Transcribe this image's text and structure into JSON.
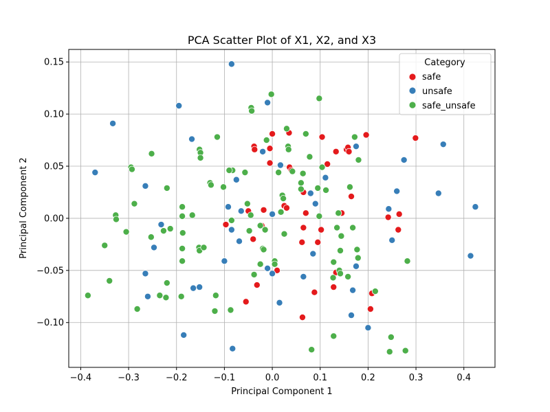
{
  "chart_data": {
    "type": "scatter",
    "title": "PCA Scatter Plot of X1, X2, and X3",
    "xlabel": "Principal Component 1",
    "ylabel": "Principal Component 2",
    "xlim": [
      -0.425,
      0.465
    ],
    "ylim": [
      -0.143,
      0.162
    ],
    "xticks": [
      -0.4,
      -0.3,
      -0.2,
      -0.1,
      0.0,
      0.1,
      0.2,
      0.3,
      0.4
    ],
    "xtick_labels": [
      "−0.4",
      "−0.3",
      "−0.2",
      "−0.1",
      "0.0",
      "0.1",
      "0.2",
      "0.3",
      "0.4"
    ],
    "yticks": [
      -0.1,
      -0.05,
      0.0,
      0.05,
      0.1,
      0.15
    ],
    "ytick_labels": [
      "−0.10",
      "−0.05",
      "0.00",
      "0.05",
      "0.10",
      "0.15"
    ],
    "grid": true,
    "legend": {
      "title": "Category",
      "placement": "top-right"
    },
    "series": [
      {
        "name": "safe",
        "color": "#e41a1c",
        "points": [
          [
            0.0,
            0.081
          ],
          [
            0.035,
            0.082
          ],
          [
            -0.038,
            0.069
          ],
          [
            -0.037,
            0.066
          ],
          [
            -0.005,
            0.067
          ],
          [
            0.104,
            0.078
          ],
          [
            0.133,
            0.064
          ],
          [
            0.155,
            0.066
          ],
          [
            0.158,
            0.068
          ],
          [
            0.16,
            0.064
          ],
          [
            0.196,
            0.08
          ],
          [
            0.299,
            0.077
          ],
          [
            0.115,
            0.052
          ],
          [
            0.036,
            0.049
          ],
          [
            -0.005,
            0.053
          ],
          [
            0.04,
            0.046
          ],
          [
            0.065,
            0.025
          ],
          [
            0.165,
            0.021
          ],
          [
            -0.018,
            0.008
          ],
          [
            -0.05,
            0.007
          ],
          [
            0.025,
            0.012
          ],
          [
            0.03,
            0.01
          ],
          [
            0.07,
            0.005
          ],
          [
            0.145,
            0.005
          ],
          [
            0.242,
            0.001
          ],
          [
            0.265,
            0.004
          ],
          [
            -0.097,
            -0.006
          ],
          [
            -0.022,
            -0.007
          ],
          [
            0.065,
            -0.009
          ],
          [
            0.102,
            -0.011
          ],
          [
            -0.04,
            -0.02
          ],
          [
            0.062,
            -0.023
          ],
          [
            0.095,
            -0.023
          ],
          [
            0.263,
            -0.011
          ],
          [
            0.01,
            -0.05
          ],
          [
            0.133,
            -0.052
          ],
          [
            -0.032,
            -0.064
          ],
          [
            0.128,
            -0.066
          ],
          [
            -0.055,
            -0.08
          ],
          [
            0.088,
            -0.071
          ],
          [
            0.208,
            -0.072
          ],
          [
            0.205,
            -0.087
          ],
          [
            0.063,
            -0.095
          ]
        ]
      },
      {
        "name": "unsafe",
        "color": "#377eb8",
        "points": [
          [
            -0.085,
            0.148
          ],
          [
            -0.195,
            0.108
          ],
          [
            -0.333,
            0.091
          ],
          [
            -0.01,
            0.111
          ],
          [
            -0.168,
            0.076
          ],
          [
            0.175,
            0.069
          ],
          [
            0.357,
            0.071
          ],
          [
            0.275,
            0.056
          ],
          [
            0.017,
            0.051
          ],
          [
            -0.37,
            0.044
          ],
          [
            -0.02,
            0.064
          ],
          [
            -0.075,
            0.037
          ],
          [
            0.111,
            0.039
          ],
          [
            -0.265,
            0.031
          ],
          [
            0.08,
            0.024
          ],
          [
            0.26,
            0.026
          ],
          [
            0.347,
            0.024
          ],
          [
            0.09,
            0.014
          ],
          [
            0.243,
            0.009
          ],
          [
            0.424,
            0.011
          ],
          [
            -0.065,
            0.007
          ],
          [
            -0.092,
            0.011
          ],
          [
            0.0,
            0.004
          ],
          [
            -0.232,
            -0.006
          ],
          [
            -0.085,
            -0.011
          ],
          [
            0.25,
            -0.021
          ],
          [
            -0.069,
            -0.022
          ],
          [
            -0.247,
            -0.028
          ],
          [
            0.0,
            -0.053
          ],
          [
            0.085,
            -0.034
          ],
          [
            -0.1,
            -0.041
          ],
          [
            -0.01,
            -0.048
          ],
          [
            0.175,
            -0.046
          ],
          [
            -0.265,
            -0.053
          ],
          [
            0.065,
            -0.056
          ],
          [
            -0.152,
            -0.066
          ],
          [
            -0.165,
            -0.067
          ],
          [
            0.168,
            -0.069
          ],
          [
            0.015,
            -0.081
          ],
          [
            -0.26,
            -0.075
          ],
          [
            0.165,
            -0.093
          ],
          [
            0.414,
            -0.036
          ],
          [
            0.2,
            -0.105
          ],
          [
            -0.185,
            -0.112
          ],
          [
            -0.083,
            -0.125
          ]
        ]
      },
      {
        "name": "safe_unsafe",
        "color": "#4daf4a",
        "points": [
          [
            -0.002,
            0.119
          ],
          [
            0.098,
            0.115
          ],
          [
            -0.044,
            0.106
          ],
          [
            -0.043,
            0.103
          ],
          [
            0.03,
            0.086
          ],
          [
            0.07,
            0.081
          ],
          [
            -0.115,
            0.078
          ],
          [
            -0.012,
            0.075
          ],
          [
            0.172,
            0.078
          ],
          [
            -0.252,
            0.062
          ],
          [
            -0.152,
            0.066
          ],
          [
            -0.15,
            0.063
          ],
          [
            0.033,
            0.069
          ],
          [
            0.034,
            0.066
          ],
          [
            -0.15,
            0.058
          ],
          [
            0.078,
            0.059
          ],
          [
            0.18,
            0.056
          ],
          [
            -0.295,
            0.049
          ],
          [
            -0.293,
            0.047
          ],
          [
            0.104,
            0.049
          ],
          [
            0.042,
            0.045
          ],
          [
            0.013,
            0.044
          ],
          [
            -0.083,
            0.046
          ],
          [
            -0.09,
            0.046
          ],
          [
            -0.057,
            0.044
          ],
          [
            0.064,
            0.043
          ],
          [
            -0.22,
            0.029
          ],
          [
            -0.13,
            0.034
          ],
          [
            -0.128,
            0.032
          ],
          [
            -0.102,
            0.03
          ],
          [
            0.06,
            0.034
          ],
          [
            0.06,
            0.028
          ],
          [
            0.095,
            0.029
          ],
          [
            0.112,
            0.027
          ],
          [
            0.162,
            0.03
          ],
          [
            -0.288,
            0.014
          ],
          [
            -0.188,
            0.011
          ],
          [
            -0.052,
            0.014
          ],
          [
            0.021,
            0.022
          ],
          [
            0.023,
            0.019
          ],
          [
            -0.327,
            0.003
          ],
          [
            -0.326,
            -0.001
          ],
          [
            -0.188,
            0.002
          ],
          [
            -0.167,
            0.003
          ],
          [
            -0.045,
            0.003
          ],
          [
            -0.085,
            -0.002
          ],
          [
            0.018,
            0.006
          ],
          [
            0.138,
            0.005
          ],
          [
            -0.305,
            -0.013
          ],
          [
            -0.213,
            -0.01
          ],
          [
            -0.227,
            -0.012
          ],
          [
            -0.187,
            -0.014
          ],
          [
            -0.048,
            -0.012
          ],
          [
            -0.025,
            -0.007
          ],
          [
            -0.015,
            -0.011
          ],
          [
            0.025,
            -0.015
          ],
          [
            0.135,
            -0.009
          ],
          [
            0.168,
            -0.009
          ],
          [
            -0.35,
            -0.026
          ],
          [
            -0.253,
            -0.018
          ],
          [
            -0.188,
            -0.029
          ],
          [
            -0.153,
            -0.028
          ],
          [
            -0.152,
            -0.031
          ],
          [
            -0.143,
            -0.028
          ],
          [
            -0.02,
            -0.029
          ],
          [
            -0.018,
            -0.03
          ],
          [
            0.098,
            0.002
          ],
          [
            0.144,
            -0.017
          ],
          [
            0.142,
            -0.031
          ],
          [
            0.177,
            -0.03
          ],
          [
            -0.188,
            -0.041
          ],
          [
            -0.025,
            -0.044
          ],
          [
            0.005,
            -0.041
          ],
          [
            0.005,
            -0.044
          ],
          [
            0.128,
            -0.042
          ],
          [
            0.179,
            -0.038
          ],
          [
            0.282,
            -0.041
          ],
          [
            -0.34,
            -0.06
          ],
          [
            -0.22,
            -0.062
          ],
          [
            -0.038,
            -0.054
          ],
          [
            0.14,
            -0.05
          ],
          [
            0.142,
            -0.053
          ],
          [
            0.158,
            -0.056
          ],
          [
            0.127,
            -0.057
          ],
          [
            -0.385,
            -0.074
          ],
          [
            -0.235,
            -0.074
          ],
          [
            -0.222,
            -0.076
          ],
          [
            -0.19,
            -0.075
          ],
          [
            -0.118,
            -0.074
          ],
          [
            0.215,
            -0.07
          ],
          [
            -0.282,
            -0.087
          ],
          [
            -0.12,
            -0.089
          ],
          [
            -0.087,
            -0.088
          ],
          [
            0.128,
            -0.113
          ],
          [
            0.248,
            -0.114
          ],
          [
            0.082,
            -0.126
          ],
          [
            0.245,
            -0.128
          ],
          [
            0.278,
            -0.127
          ]
        ]
      }
    ]
  }
}
